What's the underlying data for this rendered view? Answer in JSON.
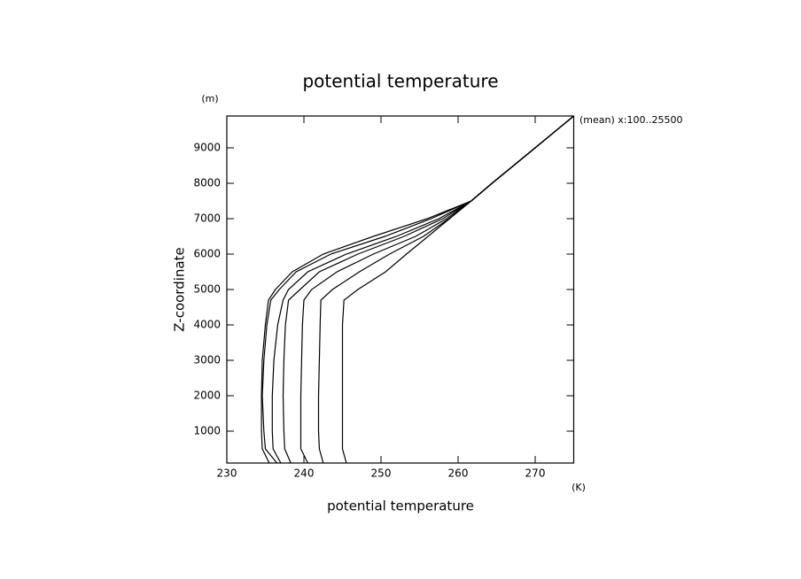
{
  "chart_data": {
    "type": "line",
    "title": "potential temperature",
    "xlabel": "potential temperature",
    "ylabel": "Z-coordinate",
    "x_unit": "(K)",
    "y_unit": "(m)",
    "annotation": "(mean) x:100..25500",
    "xlim": [
      230,
      275
    ],
    "xticks": [
      230,
      240,
      250,
      260,
      270
    ],
    "ylim": [
      100,
      9900
    ],
    "yticks": [
      1000,
      2000,
      3000,
      4000,
      5000,
      6000,
      7000,
      8000,
      9000
    ],
    "y": [
      100,
      500,
      1000,
      2000,
      3000,
      4000,
      4700,
      5000,
      5500,
      6000,
      6500,
      7000,
      7500,
      8000,
      9000,
      9900
    ],
    "series": [
      {
        "color": "#000000",
        "values": [
          245.5,
          245,
          245,
          245,
          245,
          245,
          245.2,
          247,
          250.6,
          253.3,
          256.1,
          258.9,
          261.7,
          264.4,
          270,
          275
        ]
      },
      {
        "color": "#000000",
        "values": [
          242.5,
          242,
          241.9,
          241.9,
          242,
          242.1,
          242.2,
          243.7,
          247.2,
          251.1,
          255.5,
          258.8,
          261.7,
          264.4,
          270,
          275
        ]
      },
      {
        "color": "#000000",
        "values": [
          240.5,
          239.6,
          239.6,
          239.6,
          239.7,
          239.8,
          240,
          241,
          244.3,
          249,
          254.5,
          258.5,
          261.7,
          264.4,
          270,
          275
        ]
      },
      {
        "color": "#000000",
        "values": [
          238.3,
          237.5,
          237.4,
          237.3,
          237.4,
          237.6,
          238,
          239.5,
          242,
          247,
          253,
          258,
          261.7,
          264.4,
          270,
          275
        ]
      },
      {
        "color": "#000000",
        "values": [
          237,
          236,
          235.9,
          235.9,
          236.1,
          236.6,
          237.3,
          238,
          240.5,
          245.5,
          252,
          257.5,
          261.7,
          264.4,
          270,
          275
        ]
      },
      {
        "color": "#000000",
        "values": [
          236.5,
          235,
          234.8,
          234.6,
          234.8,
          235.2,
          235.7,
          236.8,
          239,
          243.5,
          250.5,
          256.5,
          261.7,
          264.4,
          270,
          275
        ]
      },
      {
        "color": "#000000",
        "values": [
          235.5,
          234.6,
          234.5,
          234.5,
          234.6,
          235,
          235.4,
          236.3,
          238.5,
          242.5,
          249,
          256,
          261.7,
          264.4,
          270,
          275
        ]
      }
    ]
  }
}
